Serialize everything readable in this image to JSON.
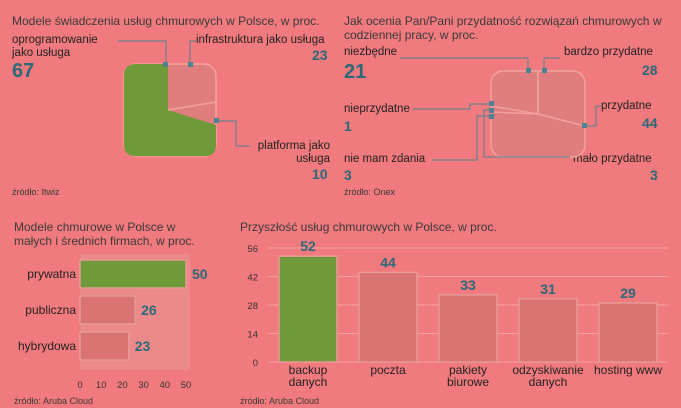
{
  "colors": {
    "background": "#f07a7e",
    "accent_green": "#6f9a3a",
    "bar_dark": "#d97472",
    "bar_border": "#e89a96",
    "value_text": "#2a6a78",
    "connector": "#4e8292"
  },
  "chart_data": [
    {
      "type": "pie",
      "title": "Modele świadczenia usług chmurowych w Polsce, w proc.",
      "categories": [
        "oprogramowanie jako usługa",
        "infrastruktura jako usługa",
        "platforma jako usługa"
      ],
      "values": [
        67,
        23,
        10
      ],
      "value_labels": [
        "67",
        "23",
        "10"
      ],
      "source": "źródło: Itwiz"
    },
    {
      "type": "pie",
      "title": "Jak ocenia Pan/Pani przydatność rozwiązań chmurowych w codziennej pracy, w proc.",
      "categories": [
        "niezbędne",
        "bardzo przydatne",
        "przydatne",
        "mało przydatne",
        "nie mam zdania",
        "nieprzydatne"
      ],
      "values": [
        21,
        28,
        44,
        3,
        3,
        1
      ],
      "value_labels": [
        "21",
        "28",
        "44",
        "3",
        "3",
        "1"
      ],
      "source": "źródło: Onex"
    },
    {
      "type": "bar",
      "orientation": "horizontal",
      "title": "Modele chmurowe w Polsce w małych i średnich firmach, w proc.",
      "categories": [
        "prywatna",
        "publiczna",
        "hybrydowa"
      ],
      "values": [
        50,
        26,
        23
      ],
      "value_labels": [
        "50",
        "26",
        "23"
      ],
      "xlim": [
        0,
        50
      ],
      "x_ticks": [
        "0",
        "10",
        "20",
        "30",
        "40",
        "50"
      ],
      "source": "źródło: Aruba Cloud"
    },
    {
      "type": "bar",
      "title": "Przyszłość usług chmurowych w Polsce, w proc.",
      "categories": [
        "backup danych",
        "poczta",
        "pakiety biurowe",
        "odzyskiwanie danych",
        "hosting www"
      ],
      "values": [
        52,
        44,
        33,
        31,
        29
      ],
      "value_labels": [
        "52",
        "44",
        "33",
        "31",
        "29"
      ],
      "ylim": [
        0,
        56
      ],
      "y_ticks": [
        "0",
        "14",
        "28",
        "42",
        "56"
      ],
      "source": "źródło: Aruba Cloud"
    }
  ]
}
